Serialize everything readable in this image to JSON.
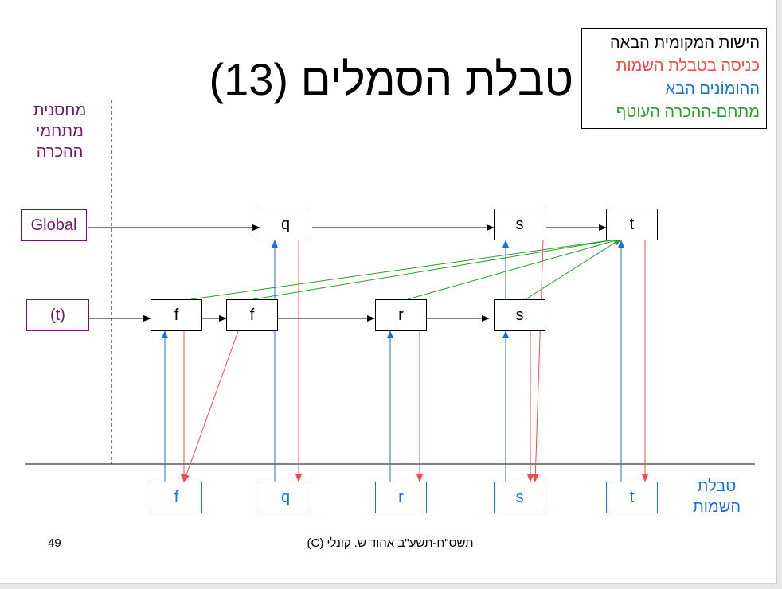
{
  "slide": {
    "title": "טבלת הסמלים (13)",
    "legend": {
      "items": [
        {
          "label": "הישות המקומית הבאה",
          "color": "#000000"
        },
        {
          "label": "כניסה בטבלת השמות",
          "color": "#f14b4b"
        },
        {
          "label": "ההומוֹנִים הבא",
          "color": "#1a6fe0"
        },
        {
          "label": "מתחם-ההכרה העוטף",
          "color": "#2e9b2e"
        }
      ]
    },
    "scope_stack_header": [
      "מחסנית",
      "מתחמי",
      "ההכרה"
    ],
    "names_table_label": [
      "טבלת",
      "השמות"
    ],
    "scopes": {
      "global": "Global",
      "t": "(t)"
    },
    "global_nodes": [
      "q",
      "s",
      "t"
    ],
    "t_nodes": [
      "f",
      "f",
      "r",
      "s"
    ],
    "name_entries": [
      "f",
      "q",
      "r",
      "s",
      "t"
    ],
    "footer": "(C) תשס\"ח-תשע\"ב אהוד ש. קונלי",
    "page_number": "49"
  }
}
